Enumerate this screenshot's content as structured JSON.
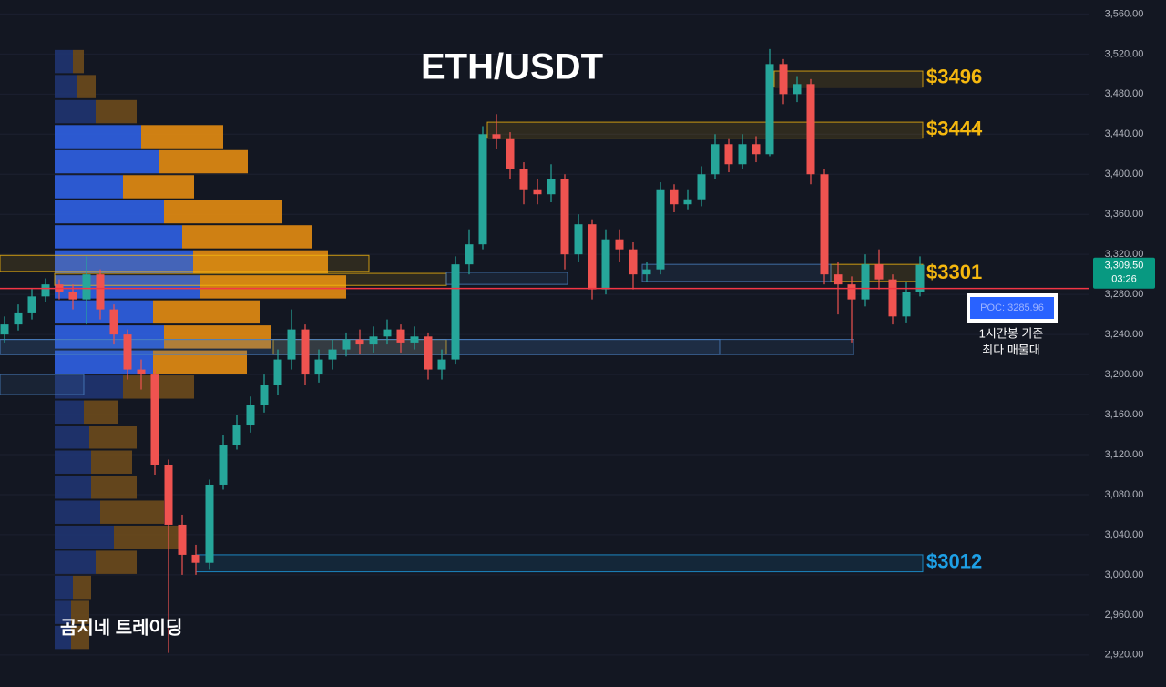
{
  "chart_data": {
    "type": "candlestick",
    "title": "ETH/USDT",
    "watermark": "곰지네 트레이딩",
    "open": [
      3240,
      3250,
      3262,
      3278,
      3290,
      3282,
      3275,
      3300,
      3265,
      3240,
      3205,
      3200,
      3110,
      3050,
      3020,
      3012,
      3090,
      3130,
      3150,
      3170,
      3190,
      3215,
      3245,
      3200,
      3215,
      3225,
      3235,
      3230,
      3238,
      3245,
      3232,
      3238,
      3205,
      3215,
      3310,
      3330,
      3440,
      3435,
      3405,
      3385,
      3380,
      3395,
      3320,
      3350,
      3285,
      3335,
      3325,
      3300,
      3305,
      3385,
      3370,
      3375,
      3400,
      3430,
      3410,
      3430,
      3420,
      3510,
      3480,
      3490,
      3400,
      3300,
      3290,
      3275,
      3310,
      3295,
      3258,
      3282
    ],
    "high": [
      3258,
      3270,
      3286,
      3296,
      3295,
      3290,
      3318,
      3305,
      3270,
      3245,
      3215,
      3205,
      3115,
      3060,
      3030,
      3095,
      3140,
      3160,
      3178,
      3200,
      3225,
      3265,
      3250,
      3225,
      3235,
      3242,
      3245,
      3248,
      3255,
      3250,
      3248,
      3242,
      3225,
      3318,
      3345,
      3448,
      3460,
      3442,
      3412,
      3395,
      3410,
      3400,
      3360,
      3355,
      3345,
      3345,
      3332,
      3312,
      3392,
      3390,
      3385,
      3408,
      3440,
      3435,
      3440,
      3438,
      3525,
      3515,
      3498,
      3495,
      3405,
      3312,
      3298,
      3320,
      3325,
      3300,
      3292,
      3318
    ],
    "low": [
      3232,
      3244,
      3255,
      3272,
      3275,
      3265,
      3250,
      3255,
      3230,
      3195,
      3185,
      3100,
      2922,
      3000,
      3000,
      3005,
      3085,
      3125,
      3142,
      3162,
      3180,
      3205,
      3190,
      3192,
      3205,
      3218,
      3220,
      3222,
      3230,
      3222,
      3225,
      3195,
      3195,
      3210,
      3300,
      3325,
      3425,
      3395,
      3370,
      3370,
      3372,
      3305,
      3312,
      3275,
      3280,
      3312,
      3285,
      3292,
      3300,
      3362,
      3365,
      3368,
      3395,
      3402,
      3405,
      3412,
      3418,
      3470,
      3472,
      3390,
      3290,
      3260,
      3232,
      3268,
      3285,
      3250,
      3252,
      3278
    ],
    "close": [
      3250,
      3262,
      3278,
      3290,
      3282,
      3275,
      3300,
      3265,
      3240,
      3205,
      3200,
      3110,
      3050,
      3020,
      3012,
      3090,
      3130,
      3150,
      3170,
      3190,
      3215,
      3245,
      3200,
      3215,
      3225,
      3235,
      3230,
      3238,
      3245,
      3232,
      3238,
      3205,
      3215,
      3310,
      3330,
      3440,
      3435,
      3405,
      3385,
      3380,
      3395,
      3320,
      3350,
      3285,
      3335,
      3325,
      3300,
      3305,
      3385,
      3370,
      3375,
      3400,
      3430,
      3410,
      3430,
      3420,
      3510,
      3480,
      3490,
      3400,
      3300,
      3290,
      3275,
      3310,
      3295,
      3258,
      3282,
      3309.5
    ],
    "colors": {
      "up": "#26a69a",
      "down": "#ef5350"
    },
    "ylim": [
      2888,
      3574
    ],
    "yticks": [
      {
        "value": 2920,
        "label": "2,920.00"
      },
      {
        "value": 2960,
        "label": "2,960.00"
      },
      {
        "value": 3000,
        "label": "3,000.00"
      },
      {
        "value": 3040,
        "label": "3,040.00"
      },
      {
        "value": 3080,
        "label": "3,080.00"
      },
      {
        "value": 3120,
        "label": "3,120.00"
      },
      {
        "value": 3160,
        "label": "3,160.00"
      },
      {
        "value": 3200,
        "label": "3,200.00"
      },
      {
        "value": 3240,
        "label": "3,240.00"
      },
      {
        "value": 3280,
        "label": "3,280.00"
      },
      {
        "value": 3320,
        "label": "3,320.00"
      },
      {
        "value": 3360,
        "label": "3,360.00"
      },
      {
        "value": 3400,
        "label": "3,400.00"
      },
      {
        "value": 3440,
        "label": "3,440.00"
      },
      {
        "value": 3480,
        "label": "3,480.00"
      },
      {
        "value": 3520,
        "label": "3,520.00"
      },
      {
        "value": 3560,
        "label": "3,560.00"
      }
    ],
    "grid": true,
    "last_price": {
      "value": 3309.5,
      "label": "3,309.50",
      "countdown": "03:26",
      "color": "#089981"
    },
    "poc": {
      "value": 3285.96,
      "label": "POC: 3285.96",
      "color": "#f23645",
      "note": [
        "1시간봉 기준",
        "최다 매물대"
      ]
    },
    "volume_profile": {
      "levels": [
        3500,
        3475,
        3450,
        3425,
        3400,
        3375,
        3350,
        3325,
        3300,
        3275,
        3250,
        3225,
        3200,
        3175,
        3150,
        3125,
        3100,
        3075,
        3050,
        3025,
        3000,
        2975,
        2950,
        2925
      ],
      "step": 25,
      "buy": [
        20,
        25,
        45,
        95,
        115,
        75,
        120,
        140,
        152,
        160,
        108,
        120,
        108,
        75,
        32,
        38,
        40,
        40,
        50,
        65,
        45,
        20,
        18,
        18
      ],
      "sell": [
        12,
        20,
        45,
        90,
        97,
        78,
        130,
        142,
        148,
        160,
        117,
        118,
        103,
        78,
        38,
        52,
        45,
        50,
        70,
        72,
        45,
        20,
        20,
        20
      ],
      "value_area": [
        3200,
        3450
      ],
      "colors": {
        "buy": "#2f5fe0",
        "sell": "#e08a12",
        "buy_dim": "#1f3470",
        "sell_dim": "#6a4a1c"
      }
    },
    "zones": [
      {
        "low": 3487,
        "high": 3503,
        "color": "#f5b80f",
        "label": {
          "value": 3496,
          "label": "$3496"
        }
      },
      {
        "low": 3436,
        "high": 3452,
        "color": "#f5b80f",
        "label": {
          "value": 3444,
          "label": "$3444"
        }
      },
      {
        "low": 3293,
        "high": 3310,
        "color": "#f5b80f",
        "label": {
          "value": 3301,
          "label": "$3301"
        }
      },
      {
        "low": 3303,
        "high": 3319,
        "color": "#f5b80f"
      },
      {
        "low": 3289,
        "high": 3301,
        "color": "#f5b80f"
      },
      {
        "low": 3220,
        "high": 3235,
        "color": "#f5b80f"
      },
      {
        "low": 3293,
        "high": 3310,
        "color": "#4a7fc0"
      },
      {
        "low": 3290,
        "high": 3302,
        "color": "#4a7fc0"
      },
      {
        "low": 3220,
        "high": 3235,
        "color": "#4a7fc0"
      },
      {
        "low": 3220,
        "high": 3235,
        "color": "#4a7fc0"
      },
      {
        "low": 3180,
        "high": 3200,
        "color": "#4a7fc0"
      },
      {
        "low": 3003,
        "high": 3020,
        "color": "#1ea0e6",
        "label": {
          "value": 3012,
          "label": "$3012"
        }
      }
    ]
  }
}
